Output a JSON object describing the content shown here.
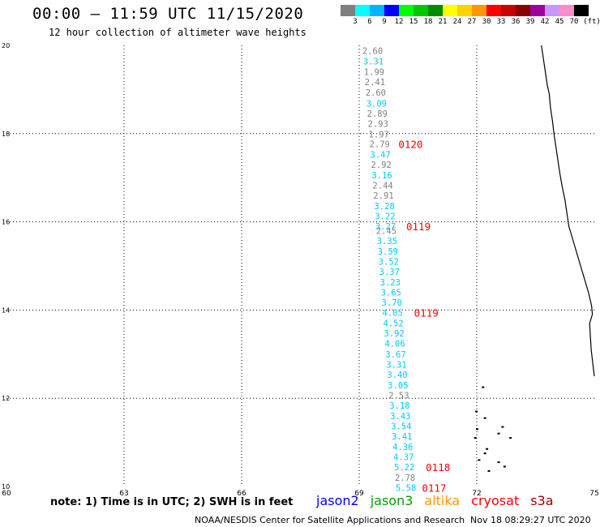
{
  "header": {
    "title": "00:00 – 11:59 UTC 11/15/2020",
    "subtitle": "12 hour collection of altimeter wave heights"
  },
  "legend": {
    "colors": [
      "#808080",
      "#00ffff",
      "#00b4ff",
      "#0000ff",
      "#00ff00",
      "#00c800",
      "#008c00",
      "#ffff00",
      "#ffd200",
      "#ff9600",
      "#ff0000",
      "#c80000",
      "#8c0000",
      "#a000a0",
      "#c896ff",
      "#ff8cc8",
      "#000000"
    ],
    "labels": [
      "3",
      "6",
      "9",
      "12",
      "15",
      "18",
      "21",
      "24",
      "27",
      "30",
      "33",
      "36",
      "39",
      "42",
      "45",
      "70",
      "(ft)"
    ]
  },
  "footer": {
    "note": "note: 1) Time is in UTC; 2) SWH is in feet",
    "satellites": [
      {
        "name": "jason2",
        "color": "#0000ff"
      },
      {
        "name": "jason3",
        "color": "#00a000"
      },
      {
        "name": "altika",
        "color": "#ff9600"
      },
      {
        "name": "cryosat",
        "color": "#ff0000"
      },
      {
        "name": "s3a",
        "color": "#a00000"
      }
    ],
    "credit": "NOAA/NESDIS Center for Satellite Applications and Research",
    "timestamp": "Nov 18 08:29:27 UTC 2020"
  },
  "chart_data": {
    "type": "scatter",
    "xlim": [
      60,
      75
    ],
    "ylim": [
      10,
      20
    ],
    "x_ticks": [
      60,
      63,
      66,
      69,
      72,
      75
    ],
    "y_ticks": [
      10,
      12,
      14,
      16,
      18,
      20
    ],
    "grid": true,
    "series": [
      {
        "color_rule": "value",
        "points": [
          {
            "x": 69.08,
            "y": 19.88,
            "label": "2.60",
            "color": "#808080"
          },
          {
            "x": 69.1,
            "y": 19.64,
            "label": "3.31",
            "color": "#00c8ff"
          },
          {
            "x": 69.12,
            "y": 19.4,
            "label": "1.99",
            "color": "#808080"
          },
          {
            "x": 69.14,
            "y": 19.17,
            "label": "2.41",
            "color": "#808080"
          },
          {
            "x": 69.16,
            "y": 18.93,
            "label": "2.60",
            "color": "#808080"
          },
          {
            "x": 69.18,
            "y": 18.69,
            "label": "3.09",
            "color": "#00c8ff"
          },
          {
            "x": 69.2,
            "y": 18.46,
            "label": "2.89",
            "color": "#808080"
          },
          {
            "x": 69.22,
            "y": 18.23,
            "label": "2.93",
            "color": "#808080"
          },
          {
            "x": 69.24,
            "y": 17.99,
            "label": "1.97",
            "color": "#808080"
          },
          {
            "x": 69.26,
            "y": 17.77,
            "label": "2.79",
            "color": "#808080"
          },
          {
            "x": 69.28,
            "y": 17.53,
            "label": "3.47",
            "color": "#00c8ff"
          },
          {
            "x": 69.3,
            "y": 17.3,
            "label": "2.92",
            "color": "#808080"
          },
          {
            "x": 69.32,
            "y": 17.06,
            "label": "3.16",
            "color": "#00c8ff"
          },
          {
            "x": 69.34,
            "y": 16.83,
            "label": "2.44",
            "color": "#808080"
          },
          {
            "x": 69.36,
            "y": 16.6,
            "label": "2.91",
            "color": "#808080"
          },
          {
            "x": 69.38,
            "y": 16.36,
            "label": "3.28",
            "color": "#00c8ff"
          },
          {
            "x": 69.4,
            "y": 16.13,
            "label": "3.22",
            "color": "#00c8ff"
          },
          {
            "x": 69.41,
            "y": 15.9,
            "label": "3.27",
            "color": "#00c8ff"
          },
          {
            "x": 69.43,
            "y": 15.8,
            "label": "2.45",
            "color": "#808080"
          },
          {
            "x": 69.45,
            "y": 15.57,
            "label": "3.35",
            "color": "#00c8ff"
          },
          {
            "x": 69.47,
            "y": 15.33,
            "label": "3.59",
            "color": "#00c8ff"
          },
          {
            "x": 69.49,
            "y": 15.1,
            "label": "3.52",
            "color": "#00c8ff"
          },
          {
            "x": 69.51,
            "y": 14.87,
            "label": "3.37",
            "color": "#00c8ff"
          },
          {
            "x": 69.53,
            "y": 14.63,
            "label": "3.23",
            "color": "#00c8ff"
          },
          {
            "x": 69.55,
            "y": 14.4,
            "label": "3.65",
            "color": "#00c8ff"
          },
          {
            "x": 69.57,
            "y": 14.17,
            "label": "3.70",
            "color": "#00c8ff"
          },
          {
            "x": 69.59,
            "y": 13.94,
            "label": "4.05",
            "color": "#00c8ff"
          },
          {
            "x": 69.61,
            "y": 13.7,
            "label": "4.52",
            "color": "#00c8ff"
          },
          {
            "x": 69.63,
            "y": 13.47,
            "label": "3.92",
            "color": "#00c8ff"
          },
          {
            "x": 69.65,
            "y": 13.24,
            "label": "4.06",
            "color": "#00c8ff"
          },
          {
            "x": 69.67,
            "y": 13.0,
            "label": "3.67",
            "color": "#00c8ff"
          },
          {
            "x": 69.69,
            "y": 12.77,
            "label": "3.31",
            "color": "#00c8ff"
          },
          {
            "x": 69.71,
            "y": 12.54,
            "label": "3.40",
            "color": "#00c8ff"
          },
          {
            "x": 69.73,
            "y": 12.3,
            "label": "3.05",
            "color": "#00c8ff"
          },
          {
            "x": 69.75,
            "y": 12.07,
            "label": "2.53",
            "color": "#808080"
          },
          {
            "x": 69.77,
            "y": 11.84,
            "label": "3.18",
            "color": "#00c8ff"
          },
          {
            "x": 69.79,
            "y": 11.6,
            "label": "3.43",
            "color": "#00c8ff"
          },
          {
            "x": 69.81,
            "y": 11.37,
            "label": "3.54",
            "color": "#00c8ff"
          },
          {
            "x": 69.83,
            "y": 11.14,
            "label": "3.41",
            "color": "#00c8ff"
          },
          {
            "x": 69.85,
            "y": 10.9,
            "label": "4.36",
            "color": "#00c8ff"
          },
          {
            "x": 69.87,
            "y": 10.67,
            "label": "4.37",
            "color": "#00c8ff"
          },
          {
            "x": 69.89,
            "y": 10.44,
            "label": "5.22",
            "color": "#00c8ff"
          },
          {
            "x": 69.91,
            "y": 10.2,
            "label": "2.78",
            "color": "#808080"
          },
          {
            "x": 69.93,
            "y": 9.97,
            "label": "5.58",
            "color": "#00c8ff"
          }
        ]
      }
    ],
    "pass_labels": [
      {
        "x": 70.0,
        "y": 17.77,
        "label": "0120",
        "color": "#ff0000"
      },
      {
        "x": 70.2,
        "y": 15.9,
        "label": "0119",
        "color": "#ff0000"
      },
      {
        "x": 70.4,
        "y": 13.94,
        "label": "0119",
        "color": "#ff0000"
      },
      {
        "x": 70.7,
        "y": 10.44,
        "label": "0118",
        "color": "#ff0000"
      },
      {
        "x": 70.6,
        "y": 9.97,
        "label": "0117",
        "color": "#ff0000"
      }
    ],
    "coastline": [
      [
        73.65,
        20.0
      ],
      [
        73.7,
        19.7
      ],
      [
        73.75,
        19.4
      ],
      [
        73.8,
        19.1
      ],
      [
        73.85,
        18.9
      ],
      [
        73.88,
        18.6
      ],
      [
        73.93,
        18.3
      ],
      [
        73.97,
        18.0
      ],
      [
        74.02,
        17.7
      ],
      [
        74.07,
        17.4
      ],
      [
        74.12,
        17.1
      ],
      [
        74.18,
        16.8
      ],
      [
        74.25,
        16.5
      ],
      [
        74.3,
        16.2
      ],
      [
        74.35,
        15.9
      ],
      [
        74.45,
        15.6
      ],
      [
        74.55,
        15.3
      ],
      [
        74.65,
        15.0
      ],
      [
        74.75,
        14.7
      ],
      [
        74.85,
        14.4
      ],
      [
        74.93,
        14.1
      ],
      [
        74.95,
        13.9
      ],
      [
        74.88,
        13.7
      ],
      [
        74.9,
        13.4
      ],
      [
        74.92,
        13.1
      ],
      [
        74.96,
        12.8
      ],
      [
        75.0,
        12.5
      ]
    ],
    "islands": [
      [
        72.15,
        12.25
      ],
      [
        71.98,
        11.7
      ],
      [
        72.2,
        11.55
      ],
      [
        72.0,
        11.3
      ],
      [
        72.65,
        11.35
      ],
      [
        72.55,
        11.2
      ],
      [
        72.85,
        11.1
      ],
      [
        71.95,
        11.1
      ],
      [
        72.25,
        10.85
      ],
      [
        72.2,
        10.75
      ],
      [
        72.05,
        10.6
      ],
      [
        72.55,
        10.55
      ],
      [
        72.7,
        10.45
      ],
      [
        72.3,
        10.35
      ]
    ]
  }
}
